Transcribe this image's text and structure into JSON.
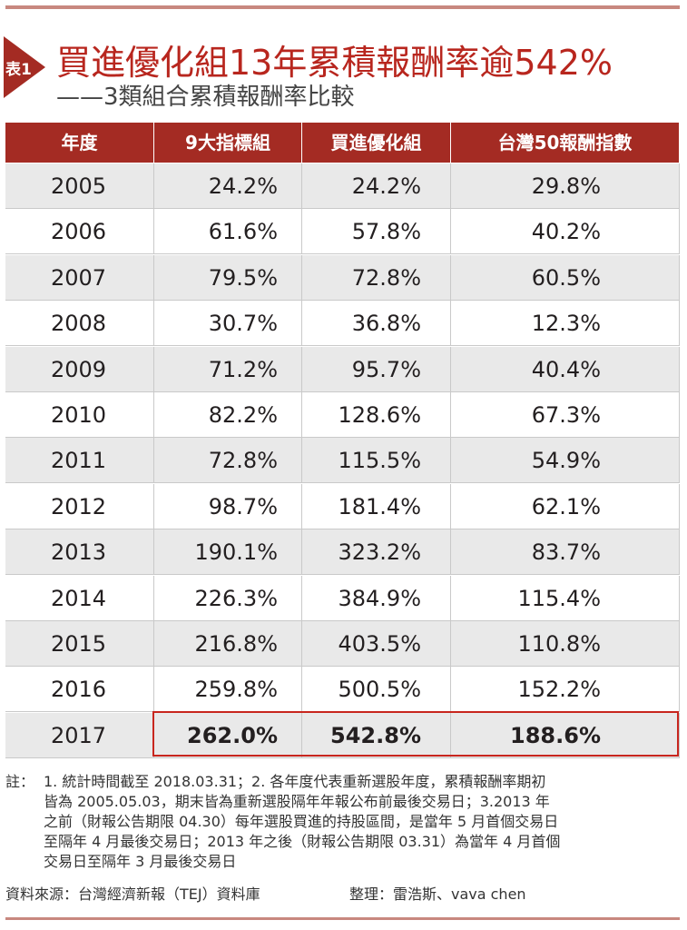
{
  "header": {
    "badge": "表1",
    "title": "買進優化組13年累積報酬率逾542%",
    "subtitle": "——3類組合累積報酬率比較"
  },
  "table": {
    "columns": [
      "年度",
      "9大指標組",
      "買進優化組",
      "台灣50報酬指數"
    ],
    "rows": [
      [
        "2005",
        "24.2%",
        "24.2%",
        "29.8%"
      ],
      [
        "2006",
        "61.6%",
        "57.8%",
        "40.2%"
      ],
      [
        "2007",
        "79.5%",
        "72.8%",
        "60.5%"
      ],
      [
        "2008",
        "30.7%",
        "36.8%",
        "12.3%"
      ],
      [
        "2009",
        "71.2%",
        "95.7%",
        "40.4%"
      ],
      [
        "2010",
        "82.2%",
        "128.6%",
        "67.3%"
      ],
      [
        "2011",
        "72.8%",
        "115.5%",
        "54.9%"
      ],
      [
        "2012",
        "98.7%",
        "181.4%",
        "62.1%"
      ],
      [
        "2013",
        "190.1%",
        "323.2%",
        "83.7%"
      ],
      [
        "2014",
        "226.3%",
        "384.9%",
        "115.4%"
      ],
      [
        "2015",
        "216.8%",
        "403.5%",
        "110.8%"
      ],
      [
        "2016",
        "259.8%",
        "500.5%",
        "152.2%"
      ],
      [
        "2017",
        "262.0%",
        "542.8%",
        "188.6%"
      ]
    ]
  },
  "note": {
    "label": "註：",
    "lines": [
      "1. 統計時間截至 2018.03.31；2. 各年度代表重新選股年度，累積報酬率期初",
      "皆為 2005.05.03，期末皆為重新選股隔年年報公布前最後交易日；3.2013 年",
      "之前（財報公告期限 04.30）每年選股買進的持股區間，是當年 5 月首個交易日",
      "至隔年 4 月最後交易日；2013 年之後（財報公告期限 03.31）為當年 4 月首個",
      "交易日至隔年 3 月最後交易日"
    ]
  },
  "source": {
    "text": "資料來源：台灣經濟新報（TEJ）資料庫",
    "editor": "整理：雷浩斯、vava chen"
  }
}
